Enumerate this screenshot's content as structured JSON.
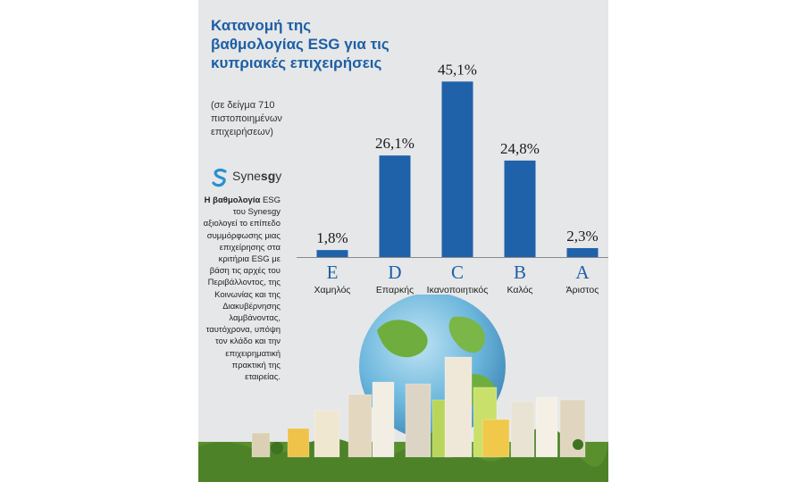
{
  "title": "Κατανομή της βαθμολογίας ESG για τις κυπριακές επιχειρήσεις",
  "subtitle": "(σε δείγμα 710 πιστοποιημένων επιχειρήσεων)",
  "brand": {
    "name_prefix": "Syne",
    "name_bold": "sg",
    "name_y": "y"
  },
  "description": {
    "lead": "Η βαθμολογία",
    "body": "ESG του Synesgy αξιολογεί το επίπεδο συμμόρφωσης μιας επιχείρησης στα κριτήρια ESG με βάση τις αρχές του Περιβάλλοντος, της Κοινωνίας και της Διακυβέρνησης λαμβάνοντας, ταυτόχρονα, υπόψη τον κλάδο και την επιχειρηματική πρακτική της εταιρείας."
  },
  "colors": {
    "title": "#1d5fa6",
    "bar": "#1f62a9",
    "panel": "#e6e7e8"
  },
  "chart_data": {
    "type": "bar",
    "categories": [
      "E",
      "D",
      "C",
      "B",
      "A"
    ],
    "category_labels": [
      "Χαμηλός",
      "Επαρκής",
      "Ικανοποιητικός",
      "Καλός",
      "Άριστος"
    ],
    "values": [
      1.8,
      26.1,
      45.1,
      24.8,
      2.3
    ],
    "value_labels": [
      "1,8%",
      "26,1%",
      "45,1%",
      "24,8%",
      "2,3%"
    ],
    "ylim": [
      0,
      50
    ],
    "grid": false,
    "legend": "none"
  }
}
